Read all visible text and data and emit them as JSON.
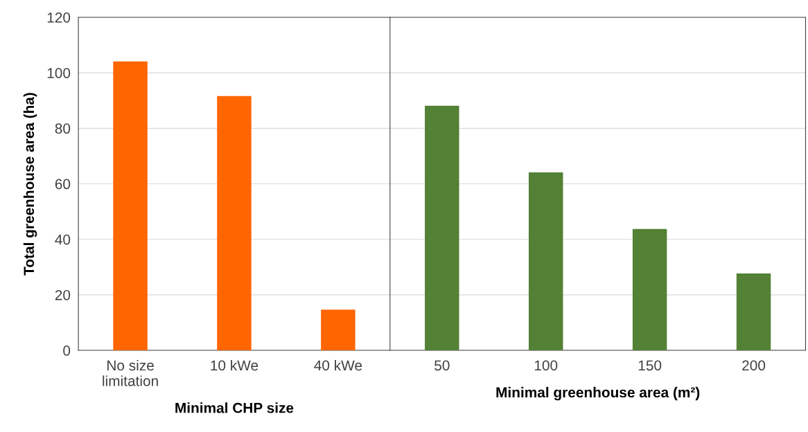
{
  "chart_data": [
    {
      "type": "bar",
      "xlabel": "Minimal CHP size",
      "ylabel": "Total greenhouse area (ha)",
      "categories": [
        "No size\nlimitation",
        "10 kWe",
        "40 kWe"
      ],
      "series": [
        {
          "color": "#ff6600",
          "values": [
            104.1,
            91.6,
            14.7
          ]
        }
      ],
      "ylim": [
        0,
        120
      ],
      "yticks": [
        0,
        20,
        40,
        60,
        80,
        100,
        120
      ],
      "grid": "y"
    },
    {
      "type": "bar",
      "xlabel": "Minimal greenhouse area (m²)",
      "categories": [
        "50",
        "100",
        "150",
        "200"
      ],
      "series": [
        {
          "color": "#538135",
          "values": [
            88.1,
            64.1,
            43.7,
            27.7
          ]
        }
      ],
      "ylim": [
        0,
        120
      ],
      "yticks": [
        0,
        20,
        40,
        60,
        80,
        100,
        120
      ],
      "grid": "y",
      "tick_labels": "x"
    }
  ]
}
